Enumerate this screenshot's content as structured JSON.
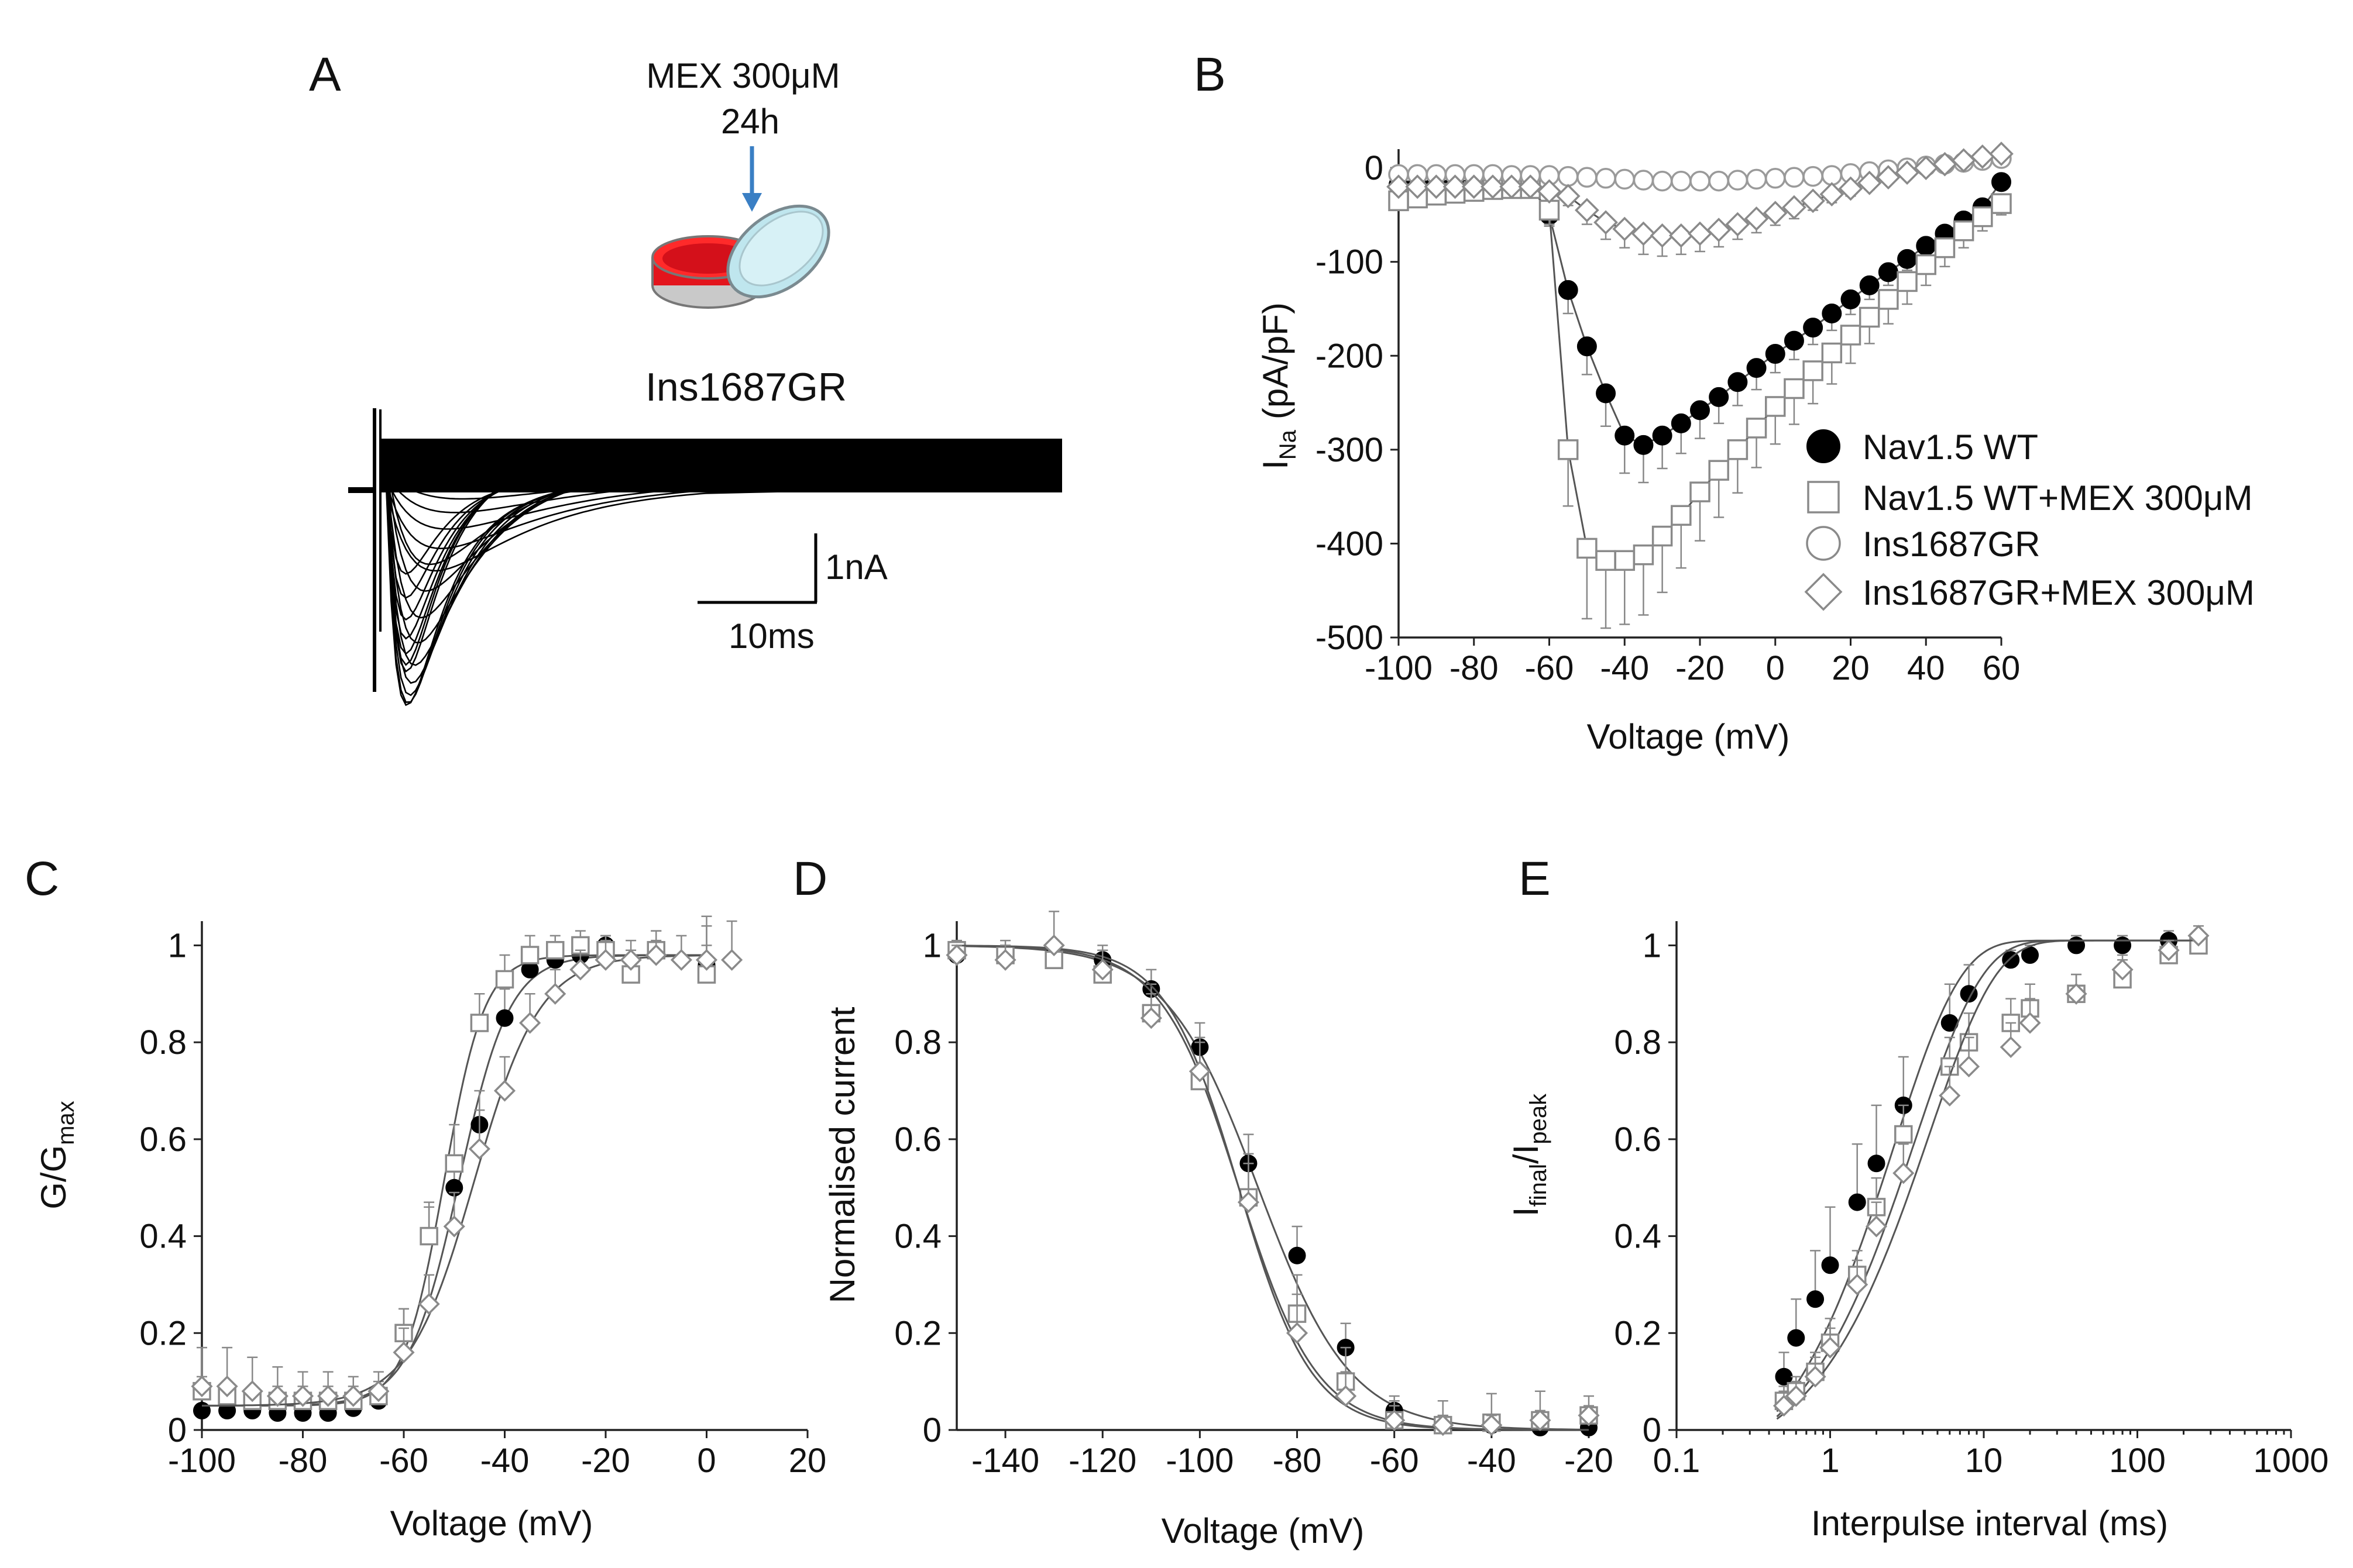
{
  "figure": {
    "panel_letters": [
      "A",
      "B",
      "C",
      "D",
      "E"
    ]
  },
  "panelA": {
    "treatment_line1": "MEX 300μM",
    "treatment_line2": "24h",
    "cell_label": "Ins1687GR",
    "scale_current": "1nA",
    "scale_time": "10ms",
    "colors": {
      "arrow": "#3a7fc4",
      "dish_red": "#e3141c",
      "coverslip": "#bfe6ee"
    }
  },
  "chart_data": [
    {
      "id": "B",
      "type": "line",
      "xlabel": "Voltage (mV)",
      "ylabel_main": "I",
      "ylabel_sub": "Na",
      "ylabel_unit": "(pA/pF)",
      "xlim": [
        -100,
        60
      ],
      "ylim": [
        -500,
        20
      ],
      "xticks": [
        -100,
        -80,
        -60,
        -40,
        -20,
        0,
        20,
        40,
        60
      ],
      "yticks": [
        0,
        -100,
        -200,
        -300,
        -400,
        -500
      ],
      "x": [
        -100,
        -95,
        -90,
        -85,
        -80,
        -75,
        -70,
        -65,
        -60,
        -55,
        -50,
        -45,
        -40,
        -35,
        -30,
        -25,
        -20,
        -15,
        -10,
        -5,
        0,
        5,
        10,
        15,
        20,
        25,
        30,
        35,
        40,
        45,
        50,
        55,
        60
      ],
      "series": [
        {
          "name": "Nav1.5 WT",
          "marker": "filled-circle",
          "values": [
            -18,
            -18,
            -17,
            -17,
            -17,
            -17,
            -18,
            -18,
            -50,
            -130,
            -190,
            -240,
            -285,
            -295,
            -285,
            -272,
            -258,
            -244,
            -228,
            -213,
            -198,
            -184,
            -170,
            -155,
            -140,
            -125,
            -111,
            -97,
            -83,
            -70,
            -56,
            -42,
            -15
          ],
          "errors": [
            0,
            0,
            0,
            0,
            0,
            0,
            0,
            0,
            12,
            25,
            30,
            35,
            40,
            40,
            35,
            32,
            30,
            28,
            25,
            23,
            20,
            20,
            18,
            18,
            16,
            15,
            14,
            12,
            10,
            10,
            8,
            8,
            6
          ]
        },
        {
          "name": "Nav1.5 WT+MEX 300μM",
          "marker": "open-square",
          "values": [
            -35,
            -32,
            -29,
            -27,
            -25,
            -23,
            -22,
            -22,
            -45,
            -300,
            -405,
            -418,
            -418,
            -412,
            -392,
            -370,
            -345,
            -322,
            -300,
            -277,
            -254,
            -235,
            -216,
            -197,
            -178,
            -159,
            -140,
            -121,
            -103,
            -85,
            -67,
            -52,
            -38
          ],
          "errors": [
            5,
            5,
            5,
            5,
            5,
            5,
            5,
            5,
            15,
            60,
            75,
            72,
            68,
            64,
            60,
            56,
            52,
            50,
            46,
            42,
            40,
            38,
            35,
            33,
            30,
            28,
            26,
            24,
            22,
            20,
            18,
            15,
            12
          ]
        },
        {
          "name": "Ins1687GR",
          "marker": "open-circle",
          "values": [
            -7,
            -7,
            -7,
            -7,
            -7,
            -7,
            -8,
            -8,
            -8,
            -9,
            -10,
            -11,
            -12,
            -13,
            -14,
            -14,
            -14,
            -14,
            -13,
            -12,
            -11,
            -10,
            -9,
            -8,
            -6,
            -4,
            -2,
            0,
            2,
            4,
            6,
            8,
            10
          ],
          "errors": [
            2,
            2,
            2,
            2,
            2,
            2,
            2,
            2,
            2,
            3,
            3,
            3,
            3,
            3,
            3,
            3,
            3,
            3,
            3,
            3,
            3,
            3,
            3,
            3,
            3,
            3,
            3,
            3,
            3,
            3,
            3,
            3,
            3
          ]
        },
        {
          "name": "Ins1687GR+MEX 300μM",
          "marker": "open-diamond",
          "values": [
            -20,
            -20,
            -20,
            -20,
            -20,
            -20,
            -20,
            -20,
            -25,
            -30,
            -45,
            -58,
            -65,
            -70,
            -72,
            -72,
            -70,
            -66,
            -60,
            -54,
            -48,
            -42,
            -35,
            -28,
            -22,
            -16,
            -10,
            -5,
            0,
            4,
            8,
            12,
            15
          ],
          "errors": [
            3,
            3,
            3,
            3,
            3,
            3,
            3,
            3,
            4,
            10,
            15,
            18,
            20,
            22,
            22,
            20,
            19,
            18,
            16,
            15,
            13,
            12,
            10,
            9,
            8,
            7,
            6,
            5,
            5,
            5,
            4,
            4,
            4
          ]
        }
      ]
    },
    {
      "id": "C",
      "type": "scatter",
      "xlabel": "Voltage (mV)",
      "ylabel_main": "G/G",
      "ylabel_sub": "max",
      "xlim": [
        -100,
        20
      ],
      "ylim": [
        0,
        1.05
      ],
      "xticks": [
        -100,
        -80,
        -60,
        -40,
        -20,
        0,
        20
      ],
      "yticks": [
        0,
        0.2,
        0.4,
        0.6,
        0.8,
        1
      ],
      "ytick_labels": [
        "0",
        "0.2",
        "0.4",
        "0.6",
        "0.8",
        "1"
      ],
      "x": [
        -100,
        -95,
        -90,
        -85,
        -80,
        -75,
        -70,
        -65,
        -60,
        -55,
        -50,
        -45,
        -40,
        -35,
        -30,
        -25,
        -20,
        -15,
        -10,
        -5,
        0,
        5
      ],
      "series": [
        {
          "name": "Nav1.5 WT",
          "marker": "filled-circle",
          "values": [
            0.04,
            0.04,
            0.04,
            0.035,
            0.035,
            0.035,
            0.045,
            0.06,
            0.2,
            0.4,
            0.5,
            0.63,
            0.85,
            0.95,
            0.97,
            0.98,
            1.0,
            null,
            0.99,
            null,
            0.96,
            null
          ],
          "errors": [
            0.01,
            0.01,
            0.01,
            0.01,
            0.01,
            0.01,
            0.02,
            0.03,
            0.05,
            0.06,
            0.06,
            0.07,
            0.06,
            0.04,
            0.03,
            0.03,
            0.02,
            null,
            0.02,
            null,
            0.04,
            null
          ],
          "fit": {
            "v_half": -49,
            "k": 5.0
          }
        },
        {
          "name": "Nav1.5 WT+MEX 300μM",
          "marker": "open-square",
          "values": [
            0.08,
            0.07,
            0.06,
            0.06,
            0.06,
            0.06,
            0.06,
            0.07,
            0.2,
            0.4,
            0.55,
            0.84,
            0.93,
            0.98,
            0.99,
            1.0,
            0.99,
            0.94,
            0.99,
            null,
            0.94,
            null
          ],
          "errors": [
            0.03,
            0.03,
            0.03,
            0.03,
            0.03,
            0.03,
            0.03,
            0.03,
            0.05,
            0.07,
            0.08,
            0.06,
            0.05,
            0.04,
            0.03,
            0.03,
            0.03,
            0.05,
            0.04,
            null,
            0.12,
            null
          ],
          "fit": {
            "v_half": -52,
            "k": 4.0
          }
        },
        {
          "name": "Ins1687GR+MEX 300μM",
          "marker": "open-diamond",
          "values": [
            0.09,
            0.09,
            0.08,
            0.07,
            0.07,
            0.07,
            0.07,
            0.08,
            0.16,
            0.26,
            0.42,
            0.58,
            0.7,
            0.84,
            0.9,
            0.95,
            0.97,
            0.97,
            0.98,
            0.97,
            0.97,
            0.97
          ],
          "errors": [
            0.08,
            0.08,
            0.07,
            0.06,
            0.05,
            0.05,
            0.04,
            0.04,
            0.05,
            0.06,
            0.07,
            0.08,
            0.07,
            0.06,
            0.05,
            0.04,
            0.04,
            0.04,
            0.05,
            0.05,
            0.07,
            0.08
          ],
          "fit": {
            "v_half": -46,
            "k": 6.5
          }
        }
      ]
    },
    {
      "id": "D",
      "type": "scatter",
      "xlabel": "Voltage (mV)",
      "ylabel": "Normalised current",
      "xlim": [
        -150,
        -20
      ],
      "ylim": [
        0,
        1.05
      ],
      "xticks": [
        -140,
        -120,
        -100,
        -80,
        -60,
        -40,
        -20
      ],
      "yticks": [
        0,
        0.2,
        0.4,
        0.6,
        0.8,
        1
      ],
      "ytick_labels": [
        "0",
        "0.2",
        "0.4",
        "0.6",
        "0.8",
        "1"
      ],
      "x": [
        -150,
        -140,
        -130,
        -120,
        -110,
        -100,
        -90,
        -80,
        -70,
        -60,
        -50,
        -40,
        -30,
        -20
      ],
      "series": [
        {
          "name": "Nav1.5 WT",
          "marker": "filled-circle",
          "values": [
            0.98,
            0.98,
            0.98,
            0.97,
            0.91,
            0.79,
            0.55,
            0.36,
            0.17,
            0.04,
            0.01,
            0.01,
            0.005,
            0.005
          ],
          "errors": [
            0.02,
            0.02,
            0.03,
            0.03,
            0.04,
            0.05,
            0.06,
            0.06,
            0.05,
            0.03,
            0.02,
            0.02,
            0.02,
            0.02
          ],
          "fit": {
            "v_half": -88,
            "k": 9.5
          }
        },
        {
          "name": "Nav1.5 WT+MEX 300μM",
          "marker": "open-square",
          "values": [
            0.99,
            0.98,
            0.97,
            0.94,
            0.86,
            0.72,
            0.48,
            0.24,
            0.1,
            0.02,
            0.01,
            0.015,
            0.02,
            0.03
          ],
          "errors": [
            0.02,
            0.03,
            0.04,
            0.05,
            0.06,
            0.08,
            0.09,
            0.08,
            0.07,
            0.04,
            0.05,
            0.06,
            0.06,
            0.04
          ],
          "fit": {
            "v_half": -92,
            "k": 8.0
          }
        },
        {
          "name": "Ins1687GR+MEX 300μM",
          "marker": "open-diamond",
          "values": [
            0.98,
            0.97,
            1.0,
            0.95,
            0.85,
            0.74,
            0.47,
            0.2,
            0.07,
            0.02,
            0.01,
            0.01,
            0.02,
            0.03
          ],
          "errors": [
            0.02,
            0.03,
            0.07,
            0.04,
            0.05,
            0.07,
            0.08,
            0.08,
            0.05,
            0.03,
            0.02,
            0.02,
            0.02,
            0.02
          ],
          "fit": {
            "v_half": -92,
            "k": 7.5
          }
        }
      ]
    },
    {
      "id": "E",
      "type": "scatter",
      "xlabel": "Interpulse interval (ms)",
      "ylabel_main": "I",
      "ylabel_sub1": "final",
      "ylabel_mid": "/I",
      "ylabel_sub2": "peak",
      "xscale": "log",
      "xlim": [
        0.1,
        1000
      ],
      "ylim": [
        0,
        1.05
      ],
      "xticks": [
        0.1,
        1,
        10,
        100,
        1000
      ],
      "xtick_labels": [
        "0.1",
        "1",
        "10",
        "100",
        "1000"
      ],
      "yticks": [
        0,
        0.2,
        0.4,
        0.6,
        0.8,
        1
      ],
      "ytick_labels": [
        "0",
        "0.2",
        "0.4",
        "0.6",
        "0.8",
        "1"
      ],
      "x": [
        0.5,
        0.6,
        0.8,
        1.0,
        1.5,
        2.0,
        3.0,
        4.0,
        6.0,
        8.0,
        10,
        15,
        20,
        25,
        40,
        55,
        80,
        160,
        250
      ],
      "series": [
        {
          "name": "Nav1.5 WT",
          "marker": "filled-circle",
          "values": [
            0.11,
            0.19,
            0.27,
            0.34,
            0.47,
            0.55,
            0.67,
            null,
            0.84,
            0.9,
            null,
            0.97,
            0.98,
            null,
            1.0,
            null,
            1.0,
            1.01,
            1.01
          ],
          "errors": [
            0.05,
            0.08,
            0.1,
            0.12,
            0.12,
            0.12,
            0.1,
            null,
            0.08,
            0.06,
            null,
            0.02,
            0.02,
            null,
            0.02,
            null,
            0.02,
            0.02,
            0.02
          ],
          "fit": {
            "tau": 2.6
          }
        },
        {
          "name": "Nav1.5 WT+MEX 300μM",
          "marker": "open-square",
          "values": [
            0.06,
            0.08,
            0.12,
            0.18,
            0.32,
            0.46,
            0.61,
            null,
            0.75,
            0.8,
            null,
            0.84,
            0.87,
            null,
            0.9,
            null,
            0.93,
            0.98,
            1.0
          ],
          "errors": [
            0.03,
            0.03,
            0.04,
            0.05,
            0.05,
            0.06,
            0.06,
            null,
            0.06,
            0.06,
            null,
            0.05,
            0.05,
            null,
            0.04,
            null,
            0.04,
            0.03,
            0.02
          ],
          "fit": {
            "tau": 3.6
          }
        },
        {
          "name": "Ins1687GR+MEX 300μM",
          "marker": "open-diamond",
          "values": [
            0.05,
            0.07,
            0.11,
            0.17,
            0.3,
            0.42,
            0.53,
            null,
            0.69,
            0.75,
            null,
            0.79,
            0.84,
            null,
            0.9,
            null,
            0.95,
            0.99,
            1.02
          ],
          "errors": [
            0.03,
            0.03,
            0.04,
            0.04,
            0.05,
            0.05,
            0.06,
            null,
            0.06,
            0.06,
            null,
            0.05,
            0.05,
            null,
            0.04,
            null,
            0.03,
            0.02,
            0.02
          ],
          "fit": {
            "tau": 4.4
          }
        }
      ]
    }
  ]
}
